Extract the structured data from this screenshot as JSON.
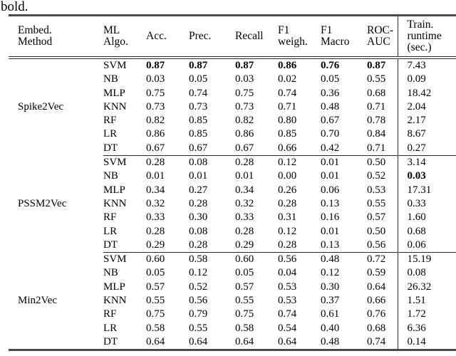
{
  "caption": "bold.",
  "table": {
    "headers": [
      "Embed.\nMethod",
      "ML\nAlgo.",
      "Acc.",
      "Prec.",
      "Recall",
      "F1\nweigh.",
      "F1\nMacro",
      "ROC-\nAUC",
      "Train.\nruntime\n(sec.)"
    ],
    "groups": [
      {
        "method": "Spike2Vec",
        "rows": [
          {
            "algo": "SVM",
            "metrics": [
              "0.87",
              "0.87",
              "0.87",
              "0.86",
              "0.76",
              "0.87"
            ],
            "runtime": "7.43",
            "bold": [
              true,
              true,
              true,
              true,
              true,
              true,
              false
            ]
          },
          {
            "algo": "NB",
            "metrics": [
              "0.03",
              "0.05",
              "0.03",
              "0.02",
              "0.05",
              "0.55"
            ],
            "runtime": "0.09"
          },
          {
            "algo": "MLP",
            "metrics": [
              "0.75",
              "0.74",
              "0.75",
              "0.74",
              "0.36",
              "0.68"
            ],
            "runtime": "18.42"
          },
          {
            "algo": "KNN",
            "metrics": [
              "0.73",
              "0.73",
              "0.73",
              "0.71",
              "0.48",
              "0.71"
            ],
            "runtime": "2.04"
          },
          {
            "algo": "RF",
            "metrics": [
              "0.82",
              "0.85",
              "0.82",
              "0.80",
              "0.67",
              "0.78"
            ],
            "runtime": "2.17"
          },
          {
            "algo": "LR",
            "metrics": [
              "0.86",
              "0.85",
              "0.86",
              "0.85",
              "0.70",
              "0.84"
            ],
            "runtime": "8.67"
          },
          {
            "algo": "DT",
            "metrics": [
              "0.67",
              "0.67",
              "0.67",
              "0.66",
              "0.42",
              "0.71"
            ],
            "runtime": "0.27"
          }
        ]
      },
      {
        "method": "PSSM2Vec",
        "rows": [
          {
            "algo": "SVM",
            "metrics": [
              "0.28",
              "0.08",
              "0.28",
              "0.12",
              "0.01",
              "0.50"
            ],
            "runtime": "3.14"
          },
          {
            "algo": "NB",
            "metrics": [
              "0.01",
              "0.01",
              "0.01",
              "0.00",
              "0.01",
              "0.52"
            ],
            "runtime": "0.03",
            "bold": [
              false,
              false,
              false,
              false,
              false,
              false,
              true
            ]
          },
          {
            "algo": "MLP",
            "metrics": [
              "0.34",
              "0.27",
              "0.34",
              "0.26",
              "0.06",
              "0.53"
            ],
            "runtime": "17.31"
          },
          {
            "algo": "KNN",
            "metrics": [
              "0.32",
              "0.28",
              "0.32",
              "0.28",
              "0.13",
              "0.55"
            ],
            "runtime": "0.33"
          },
          {
            "algo": "RF",
            "metrics": [
              "0.33",
              "0.30",
              "0.33",
              "0.31",
              "0.16",
              "0.57"
            ],
            "runtime": "1.60"
          },
          {
            "algo": "LR",
            "metrics": [
              "0.28",
              "0.08",
              "0.28",
              "0.12",
              "0.01",
              "0.50"
            ],
            "runtime": "0.68"
          },
          {
            "algo": "DT",
            "metrics": [
              "0.29",
              "0.28",
              "0.29",
              "0.28",
              "0.13",
              "0.56"
            ],
            "runtime": "0.06"
          }
        ]
      },
      {
        "method": "Min2Vec",
        "rows": [
          {
            "algo": "SVM",
            "metrics": [
              "0.60",
              "0.58",
              "0.60",
              "0.56",
              "0.48",
              "0.72"
            ],
            "runtime": "15.19"
          },
          {
            "algo": "NB",
            "metrics": [
              "0.05",
              "0.12",
              "0.05",
              "0.04",
              "0.12",
              "0.59"
            ],
            "runtime": "0.08"
          },
          {
            "algo": "MLP",
            "metrics": [
              "0.57",
              "0.52",
              "0.57",
              "0.53",
              "0.30",
              "0.64"
            ],
            "runtime": "26.32"
          },
          {
            "algo": "KNN",
            "metrics": [
              "0.55",
              "0.56",
              "0.55",
              "0.53",
              "0.37",
              "0.66"
            ],
            "runtime": "1.51"
          },
          {
            "algo": "RF",
            "metrics": [
              "0.75",
              "0.79",
              "0.75",
              "0.74",
              "0.61",
              "0.76"
            ],
            "runtime": "1.72"
          },
          {
            "algo": "LR",
            "metrics": [
              "0.58",
              "0.55",
              "0.58",
              "0.54",
              "0.40",
              "0.68"
            ],
            "runtime": "6.36"
          },
          {
            "algo": "DT",
            "metrics": [
              "0.64",
              "0.64",
              "0.64",
              "0.64",
              "0.48",
              "0.74"
            ],
            "runtime": "0.14"
          }
        ]
      }
    ]
  }
}
